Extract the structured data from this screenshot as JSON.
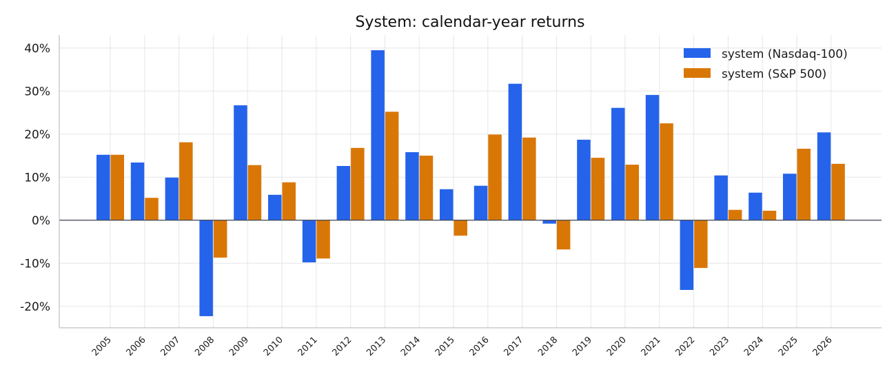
{
  "chart_data": {
    "type": "bar",
    "title": "System: calendar-year returns",
    "xlabel": "",
    "ylabel": "",
    "categories": [
      "2005",
      "2006",
      "2007",
      "2008",
      "2009",
      "2010",
      "2011",
      "2012",
      "2013",
      "2014",
      "2015",
      "2016",
      "2017",
      "2018",
      "2019",
      "2020",
      "2021",
      "2022",
      "2023",
      "2024",
      "2025",
      "2026"
    ],
    "series": [
      {
        "name": "system (Nasdaq-100)",
        "color": "#2563eb",
        "values": [
          15.2,
          13.4,
          9.9,
          -22.3,
          26.7,
          5.9,
          -9.8,
          12.6,
          39.5,
          15.8,
          7.2,
          8.0,
          31.7,
          -0.8,
          18.7,
          26.1,
          29.1,
          -16.2,
          10.4,
          6.4,
          10.8,
          20.4
        ]
      },
      {
        "name": "system (S&P 500)",
        "color": "#d97706",
        "values": [
          15.2,
          5.2,
          18.1,
          -8.7,
          12.8,
          8.8,
          -8.9,
          16.8,
          25.2,
          15.0,
          -3.6,
          19.9,
          19.2,
          -6.8,
          14.5,
          12.9,
          22.5,
          -11.1,
          2.4,
          2.2,
          16.6,
          13.1
        ]
      }
    ],
    "ylim": [
      -25,
      43
    ],
    "yticks": [
      -20,
      -10,
      0,
      10,
      20,
      30,
      40
    ],
    "ytick_labels": [
      "-20%",
      "-10%",
      "0%",
      "10%",
      "20%",
      "30%",
      "40%"
    ],
    "grid": true,
    "legend_position": "top-right"
  }
}
